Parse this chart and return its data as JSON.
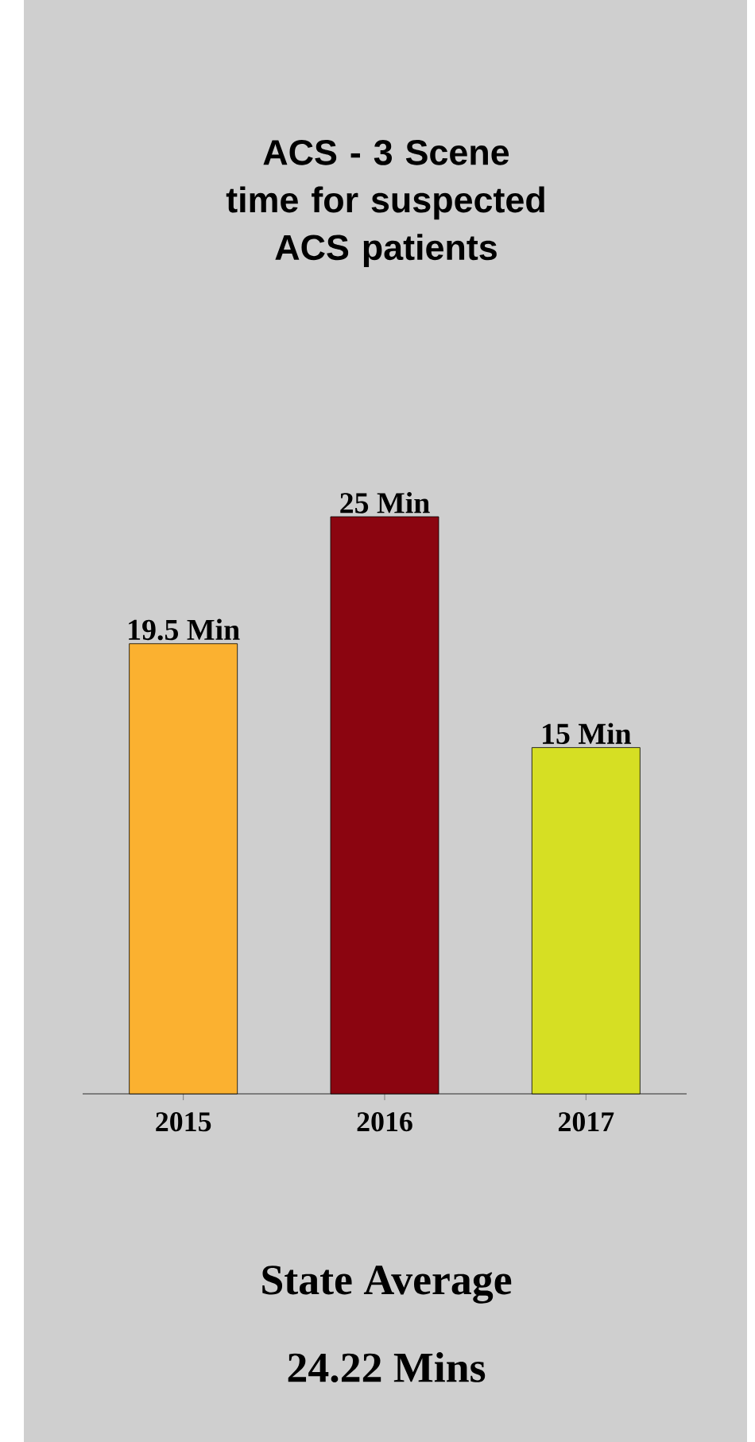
{
  "chart_data": {
    "type": "bar",
    "title": "ACS - 3 Scene time for suspected ACS patients",
    "categories": [
      "2015",
      "2016",
      "2017"
    ],
    "values": [
      19.5,
      25,
      15
    ],
    "colors": [
      "#fbb130",
      "#8b0510",
      "#d6df23"
    ],
    "value_labels": [
      "19.5 Min",
      "25 Min",
      "15 Min"
    ],
    "annotations": [
      "State Average",
      "24.22 Mins"
    ]
  }
}
